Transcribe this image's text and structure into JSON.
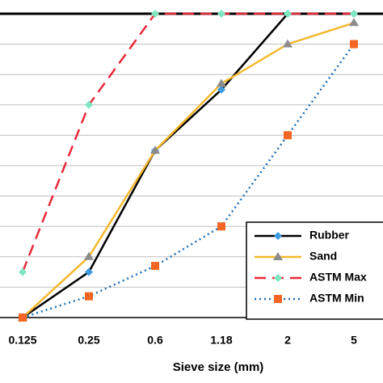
{
  "chart_data": {
    "type": "line",
    "x_label": "Sieve size (mm)",
    "categories": [
      "0.125",
      "0.25",
      "0.6",
      "1.18",
      "2",
      "5"
    ],
    "ylim": [
      0,
      100
    ],
    "yticks": [
      0,
      10,
      20,
      30,
      40,
      50,
      60,
      70,
      80,
      90,
      100
    ],
    "grid": true,
    "legend": "lower right",
    "series": [
      {
        "name": "Rubber",
        "color": "#000000",
        "marker": "diamond",
        "marker_color": "#3c9be0",
        "dash": "solid",
        "values": [
          0,
          15,
          55,
          75,
          100,
          100
        ]
      },
      {
        "name": "Sand",
        "color": "#f5b82e",
        "marker": "triangle",
        "marker_color": "#8c8c8c",
        "dash": "solid",
        "values": [
          0,
          20,
          55,
          77,
          90,
          97
        ]
      },
      {
        "name": "ASTM Max",
        "color": "#e8293a",
        "marker": "diamond",
        "marker_color": "#7ee6c0",
        "dash": "dashed",
        "values": [
          15,
          70,
          100,
          100,
          100,
          100
        ]
      },
      {
        "name": "ASTM Min",
        "color": "#1f6fb5",
        "marker": "square",
        "marker_color": "#f26522",
        "dash": "dotted",
        "values": [
          0,
          7,
          17,
          30,
          60,
          90
        ]
      }
    ]
  }
}
